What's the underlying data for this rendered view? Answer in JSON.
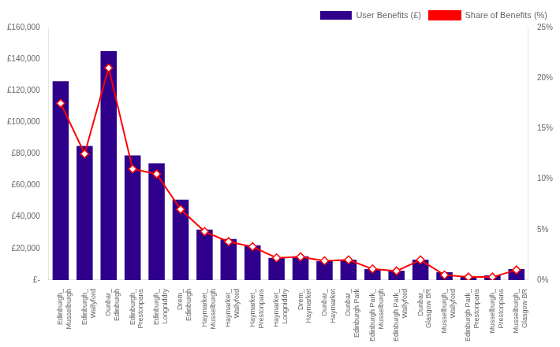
{
  "chart_data": {
    "type": "bar",
    "categories": [
      "Edinburgh_\nMusselburgh",
      "Edinburgh_\nWallyford",
      "Dunbar_\nEdinburgh",
      "Edinburgh_\nPrestonpans",
      "Edinburgh_\nLongniddry",
      "Drem_\nEdinburgh",
      "Haymarket_\nMusselburgh",
      "Haymarket_\nWallyford",
      "Haymarket_\nPrestonpans",
      "Haymarket_\nLongniddry",
      "Drem_\nHaymarket",
      "Dunbar_\nHaymarket",
      "Dunbar_\nEdinburgh Park",
      "Edinburgh Park_\nMusselburgh",
      "Edinburgh Park_\nWallyford",
      "Dunbar_\nGlasgow BR",
      "Musselburgh_\nWallyford",
      "Edinburgh Park_\nPrestonpans",
      "Musselburgh_\nPrestonpans",
      "Musselburgh_\nGlasgow BR"
    ],
    "series": [
      {
        "name": "User Benefits (£)",
        "type": "bar",
        "color": "#2E008B",
        "values": [
          126000,
          85000,
          145000,
          79000,
          74000,
          51000,
          32000,
          26000,
          22000,
          14000,
          15000,
          12000,
          13000,
          7000,
          6000,
          13000,
          5000,
          2000,
          3000,
          7000
        ]
      },
      {
        "name": "Share of Benefits (%)",
        "type": "line",
        "color": "#FF0000",
        "axis": "y2",
        "marker": "diamond",
        "values": [
          17.5,
          12.5,
          21.0,
          11.0,
          10.5,
          7.0,
          4.8,
          3.8,
          3.3,
          2.2,
          2.3,
          1.9,
          2.0,
          1.1,
          0.9,
          2.0,
          0.5,
          0.3,
          0.3,
          1.0
        ]
      }
    ],
    "ylim": [
      0,
      160000
    ],
    "yticks": [
      {
        "value": 0,
        "label": "£-"
      },
      {
        "value": 20000,
        "label": "£20,000"
      },
      {
        "value": 40000,
        "label": "£40,000"
      },
      {
        "value": 60000,
        "label": "£60,000"
      },
      {
        "value": 80000,
        "label": "£80,000"
      },
      {
        "value": 100000,
        "label": "£100,000"
      },
      {
        "value": 120000,
        "label": "£120,000"
      },
      {
        "value": 140000,
        "label": "£140,000"
      },
      {
        "value": 160000,
        "label": "£160,000"
      }
    ],
    "y2lim": [
      0,
      25
    ],
    "y2ticks": [
      {
        "value": 0,
        "label": "0%"
      },
      {
        "value": 5,
        "label": "5%"
      },
      {
        "value": 10,
        "label": "10%"
      },
      {
        "value": 15,
        "label": "15%"
      },
      {
        "value": 20,
        "label": "20%"
      },
      {
        "value": 25,
        "label": "25%"
      }
    ],
    "legend": "upper right",
    "grid": false
  }
}
